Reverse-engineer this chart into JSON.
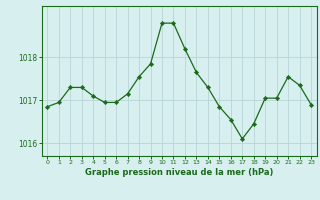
{
  "x": [
    0,
    1,
    2,
    3,
    4,
    5,
    6,
    7,
    8,
    9,
    10,
    11,
    12,
    13,
    14,
    15,
    16,
    17,
    18,
    19,
    20,
    21,
    22,
    23
  ],
  "y": [
    1016.85,
    1016.95,
    1017.3,
    1017.3,
    1017.1,
    1016.95,
    1016.95,
    1017.15,
    1017.55,
    1017.85,
    1018.8,
    1018.8,
    1018.2,
    1017.65,
    1017.3,
    1016.85,
    1016.55,
    1016.1,
    1016.45,
    1017.05,
    1017.05,
    1017.55,
    1017.35,
    1016.9
  ],
  "line_color": "#1a6b1a",
  "marker_color": "#1a6b1a",
  "bg_color": "#d8eff0",
  "plot_bg": "#d8eff0",
  "grid_color": "#b8d4d4",
  "xlabel": "Graphe pression niveau de la mer (hPa)",
  "xlabel_color": "#1a6b1a",
  "yticks": [
    1016,
    1017,
    1018
  ],
  "ylim": [
    1015.7,
    1019.2
  ],
  "xlim": [
    -0.5,
    23.5
  ],
  "tick_color": "#1a6b1a",
  "border_color": "#1a6b1a"
}
